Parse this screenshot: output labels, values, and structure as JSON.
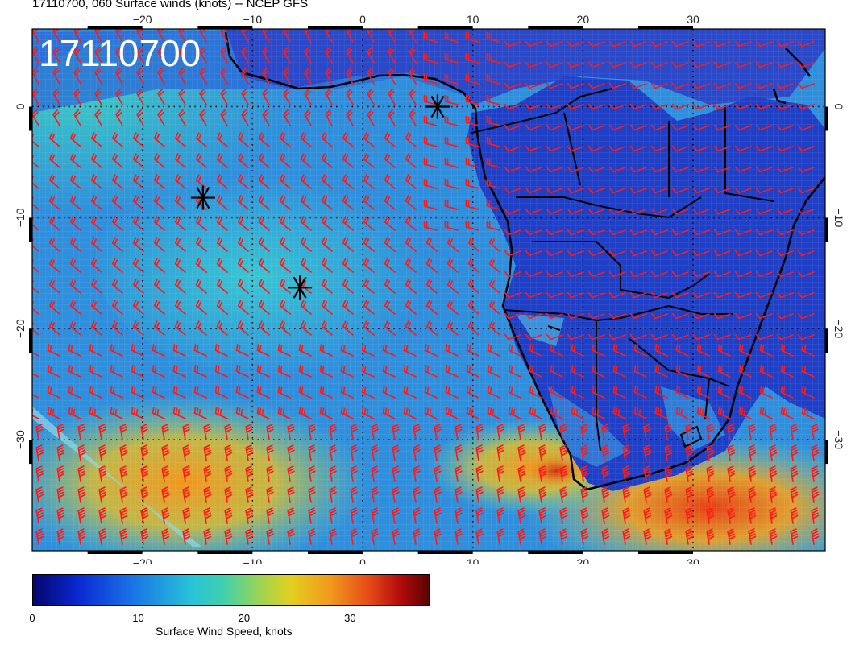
{
  "title": "17110700, 060 Surface winds (knots) -- NCEP GFS",
  "stamp": "17110700",
  "map": {
    "lon_range": [
      -30,
      42
    ],
    "lat_range": [
      -40,
      7
    ],
    "lon_ticks": [
      -20,
      -10,
      0,
      10,
      20,
      30
    ],
    "lat_ticks": [
      0,
      -10,
      -20,
      -30
    ],
    "lon_tick_labels": [
      "−20",
      "−10",
      "0",
      "10",
      "20",
      "30"
    ],
    "lat_tick_labels": [
      "0",
      "−10",
      "−20",
      "−30"
    ],
    "markers": [
      {
        "type": "storm",
        "lon": -14.5,
        "lat": -8.2
      },
      {
        "type": "storm",
        "lon": -5.7,
        "lat": -16.3
      },
      {
        "type": "storm",
        "lon": 6.8,
        "lat": 0.0
      }
    ],
    "colors": {
      "barb": "#ff1a1a",
      "coast": "#000000",
      "ocean_base": "#2f8fdc",
      "land_base": "#1f3fc8"
    }
  },
  "colorbar": {
    "ticks": [
      "0",
      "10",
      "20",
      "30"
    ],
    "tick_values": [
      0,
      10,
      20,
      30
    ],
    "max": 37.5,
    "label": "Surface Wind Speed, knots"
  }
}
